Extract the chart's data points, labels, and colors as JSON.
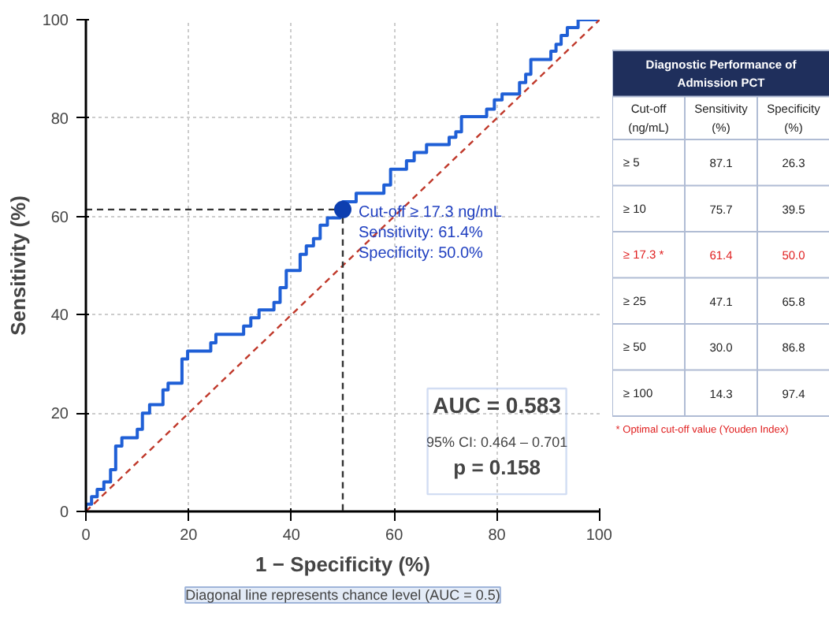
{
  "chart_data": [
    {
      "type": "line",
      "xlabel": "1 − Specificity (%)",
      "ylabel": "Sensitivity (%)",
      "xlim": [
        0,
        100
      ],
      "ylim": [
        0,
        100
      ],
      "xticks": [
        0,
        20,
        40,
        60,
        80,
        100
      ],
      "yticks": [
        0,
        20,
        40,
        60,
        80,
        100
      ],
      "grid": true,
      "series": [
        {
          "color": "#1f5fd6",
          "line_style": "solid",
          "x": [
            0,
            0,
            1.1,
            1.1,
            2.2,
            2.2,
            3.5,
            3.5,
            4.8,
            4.8,
            5.8,
            5.8,
            7.0,
            7.0,
            10,
            10,
            11,
            11,
            12.4,
            12.4,
            15,
            15,
            16,
            16,
            18.7,
            18.7,
            19.8,
            19.8,
            24.3,
            24.3,
            25.3,
            25.3,
            30.7,
            30.7,
            32.1,
            32.1,
            33.7,
            33.7,
            36.6,
            36.6,
            37.8,
            37.8,
            39,
            39,
            41.7,
            41.7,
            42.9,
            42.9,
            44.3,
            44.3,
            45.6,
            45.6,
            47,
            47,
            49.5,
            49.5,
            50,
            50,
            52.6,
            52.6,
            58,
            58,
            59.3,
            59.3,
            62.4,
            62.4,
            63.9,
            63.9,
            66.3,
            66.3,
            70.7,
            70.7,
            72,
            72,
            73.1,
            73.1,
            78,
            78,
            79.5,
            79.5,
            81,
            81,
            84.4,
            84.4,
            85.6,
            85.6,
            86.6,
            86.6,
            90.5,
            90.5,
            91.5,
            91.5,
            92.5,
            92.5,
            93.7,
            93.7,
            95.8,
            95.8,
            100
          ],
          "values": [
            0,
            1.5,
            1.5,
            3.0,
            3.0,
            4.5,
            4.5,
            6,
            6,
            8.5,
            8.5,
            13.3,
            13.3,
            15,
            15,
            16.7,
            16.7,
            20,
            20,
            21.7,
            21.7,
            24.7,
            24.7,
            26.1,
            26.1,
            31,
            31,
            32.6,
            32.6,
            34.3,
            34.3,
            36,
            36,
            37.7,
            37.7,
            39.4,
            39.4,
            41,
            41,
            42.5,
            42.5,
            45.5,
            45.5,
            49,
            49,
            52.3,
            52.3,
            54,
            54,
            55.5,
            55.5,
            58.2,
            58.2,
            59.7,
            59.7,
            61.4,
            61.4,
            63,
            63,
            64.7,
            64.7,
            66.4,
            66.4,
            69.6,
            69.6,
            71.3,
            71.3,
            73,
            73,
            74.6,
            74.6,
            76.1,
            76.1,
            77.2,
            77.2,
            80.3,
            80.3,
            81.8,
            81.8,
            83.7,
            83.7,
            84.9,
            84.9,
            87.2,
            87.2,
            88.9,
            88.9,
            91.9,
            91.9,
            93.6,
            93.6,
            95,
            95,
            96.8,
            96.8,
            98.4,
            98.4,
            100,
            100
          ]
        },
        {
          "color": "#c0392b",
          "line_style": "dashed",
          "x": [
            0,
            100
          ],
          "values": [
            0,
            100
          ]
        },
        {
          "color": "#333333",
          "line_style": "dashed",
          "x": [
            0,
            50,
            50
          ],
          "values": [
            61.4,
            61.4,
            0
          ]
        },
        {
          "type": "scatter",
          "color": "#0d3fb0",
          "marker": "circle",
          "x": [
            50
          ],
          "values": [
            61.4
          ]
        }
      ],
      "annotations": [
        "Cut-off ≥ 17.3 ng/mL",
        "Sensitivity: 61.4%",
        "Specificity: 50.0%",
        "AUC = 0.583",
        "95% CI: 0.464 – 0.701",
        "p = 0.158",
        "Diagonal line represents chance level (AUC = 0.5)"
      ]
    },
    {
      "type": "other",
      "title": "Diagnostic Performance of Admission PCT",
      "xlabel": "Cut-off (ng/mL)",
      "data_labels": true,
      "categories": [
        "≥ 5",
        "≥ 10",
        "≥ 17.3 *",
        "≥ 25",
        "≥ 50",
        "≥ 100"
      ],
      "series": [
        {
          "name": "Sensitivity (%)",
          "values": [
            87.1,
            75.7,
            61.4,
            47.1,
            30.0,
            14.3
          ],
          "value_labels": [
            "87.1",
            "75.7",
            "61.4",
            "47.1",
            "30.0",
            "14.3"
          ],
          "colors": [
            "#222222",
            "#222222",
            "#e02020",
            "#222222",
            "#222222",
            "#222222"
          ]
        },
        {
          "name": "Specificity (%)",
          "values": [
            26.3,
            39.5,
            50.0,
            65.8,
            86.8,
            97.4
          ],
          "value_labels": [
            "26.3",
            "39.5",
            "50.0",
            "65.8",
            "86.8",
            "97.4"
          ],
          "colors": [
            "#222222",
            "#222222",
            "#e02020",
            "#222222",
            "#222222",
            "#222222"
          ]
        }
      ],
      "annotations": [
        "* Optimal cut-off value (Youden Index)"
      ]
    }
  ]
}
